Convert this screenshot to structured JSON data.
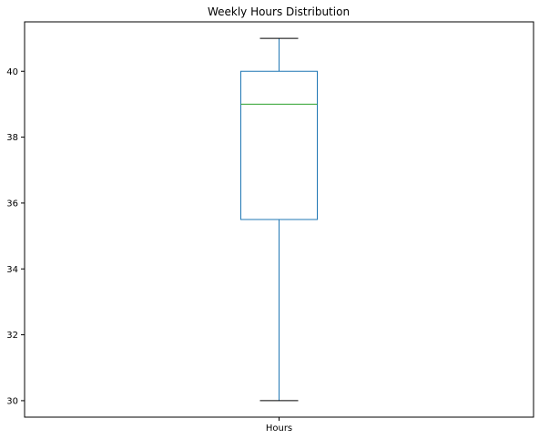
{
  "chart_data": {
    "type": "box",
    "title": "Weekly Hours Distribution",
    "categories": [
      "Hours"
    ],
    "box": {
      "min": 30,
      "q1": 35.5,
      "median": 39,
      "q3": 40,
      "max": 41
    },
    "ylim": [
      29.5,
      41.5
    ],
    "y_ticks": [
      30,
      32,
      34,
      36,
      38,
      40
    ],
    "grid": false,
    "colors": {
      "box": "#1f77b4",
      "median": "#2ca02c",
      "cap": "#000000",
      "axis": "#000000"
    }
  }
}
